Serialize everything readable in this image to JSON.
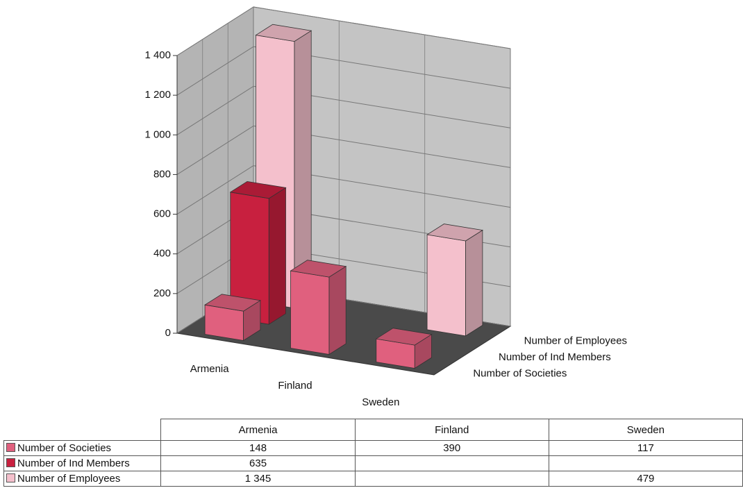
{
  "chart_data": {
    "type": "bar3d",
    "categories": [
      "Armenia",
      "Finland",
      "Sweden"
    ],
    "series": [
      {
        "name": "Number of Societies",
        "color": "#e0607e",
        "values": [
          148,
          390,
          117
        ]
      },
      {
        "name": "Number of Ind Members",
        "color": "#c8203f",
        "values": [
          635,
          null,
          null
        ]
      },
      {
        "name": "Number of Employees",
        "color": "#f4c0cc",
        "values": [
          1345,
          null,
          479
        ],
        "value_labels": [
          "1 345",
          null,
          "479"
        ]
      }
    ],
    "ylim": [
      0,
      1400
    ],
    "yticks": [
      0,
      200,
      400,
      600,
      800,
      {
        "value": 1000,
        "label": "1 000"
      },
      {
        "value": 1200,
        "label": "1 200"
      },
      {
        "value": 1400,
        "label": "1 400"
      }
    ],
    "grid": true
  }
}
